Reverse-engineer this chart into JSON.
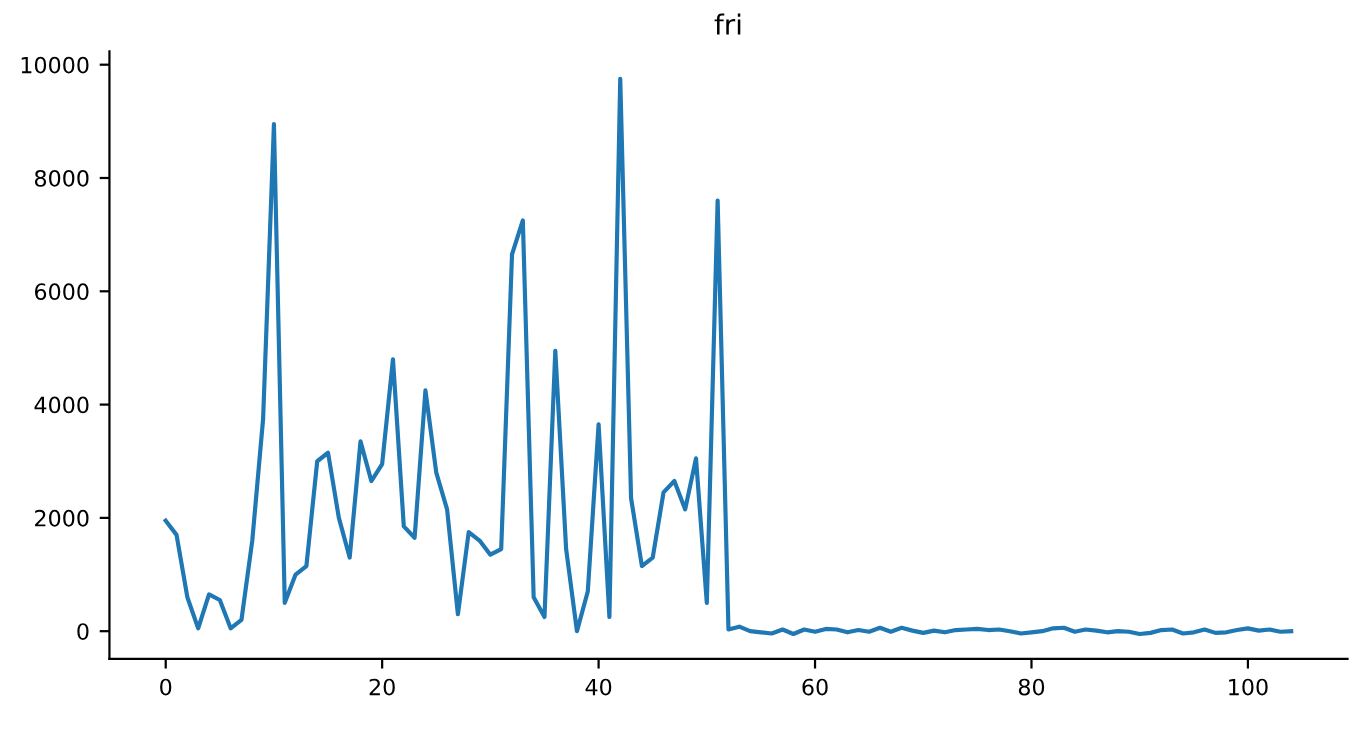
{
  "chart_data": {
    "type": "line",
    "title": "fri",
    "x": [
      0,
      1,
      2,
      3,
      4,
      5,
      6,
      7,
      8,
      9,
      10,
      11,
      12,
      13,
      14,
      15,
      16,
      17,
      18,
      19,
      20,
      21,
      22,
      23,
      24,
      25,
      26,
      27,
      28,
      29,
      30,
      31,
      32,
      33,
      34,
      35,
      36,
      37,
      38,
      39,
      40,
      41,
      42,
      43,
      44,
      45,
      46,
      47,
      48,
      49,
      50,
      51,
      52,
      53,
      54,
      55,
      56,
      57,
      58,
      59,
      60,
      61,
      62,
      63,
      64,
      65,
      66,
      67,
      68,
      69,
      70,
      71,
      72,
      73,
      74,
      75,
      76,
      77,
      78,
      79,
      80,
      81,
      82,
      83,
      84,
      85,
      86,
      87,
      88,
      89,
      90,
      91,
      92,
      93,
      94,
      95,
      96,
      97,
      98,
      99,
      100,
      101,
      102,
      103,
      104
    ],
    "series": [
      {
        "color": "#1f77b4",
        "values": [
          1950,
          1700,
          600,
          50,
          650,
          550,
          50,
          200,
          1600,
          3750,
          8950,
          500,
          1000,
          1150,
          3000,
          3150,
          2000,
          1300,
          3350,
          2650,
          2950,
          4800,
          1850,
          1650,
          4250,
          2800,
          2150,
          300,
          1750,
          1600,
          1350,
          1450,
          6650,
          7250,
          600,
          250,
          4950,
          1450,
          0,
          700,
          3650,
          250,
          9750,
          2350,
          1150,
          1300,
          2450,
          2650,
          2150,
          3050,
          500,
          7600,
          30,
          80,
          0,
          -20,
          -40,
          30,
          -50,
          30,
          -10,
          40,
          30,
          -20,
          20,
          -10,
          60,
          -10,
          60,
          10,
          -30,
          10,
          -20,
          20,
          30,
          40,
          20,
          30,
          0,
          -40,
          -20,
          0,
          50,
          60,
          -10,
          30,
          10,
          -20,
          0,
          -10,
          -50,
          -30,
          20,
          30,
          -40,
          -20,
          30,
          -30,
          -20,
          20,
          50,
          10,
          30,
          -10,
          0
        ]
      }
    ],
    "xlim": [
      -5.2,
      109.2
    ],
    "ylim": [
      -487.5,
      10237.5
    ],
    "xticks": [
      0,
      20,
      40,
      60,
      80,
      100
    ],
    "yticks": [
      0,
      2000,
      4000,
      6000,
      8000,
      10000
    ],
    "grid": false,
    "marker": "none",
    "line_style": "solid"
  }
}
